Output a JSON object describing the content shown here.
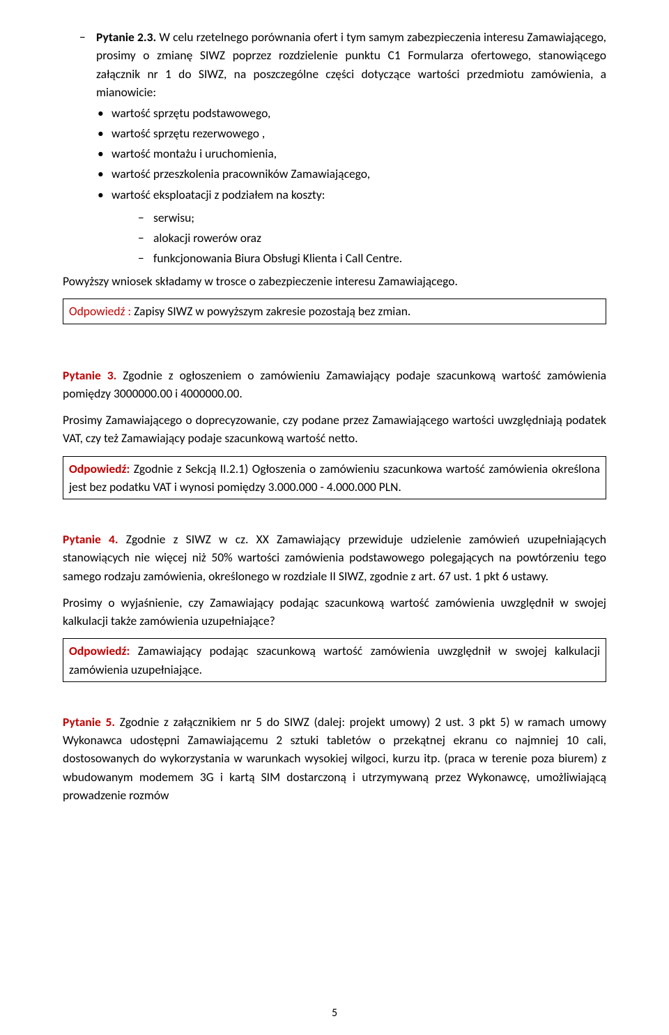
{
  "q23": {
    "heading_dash_label": "Pytanie 2.3.",
    "heading_rest": " W celu rzetelnego porównania ofert i tym samym zabezpieczenia interesu Zamawiającego, prosimy o zmianę SIWZ poprzez rozdzielenie punktu C1 Formularza ofertowego, stanowiącego załącznik nr 1 do SIWZ, na poszczególne części dotyczące wartości przedmiotu zamówienia, a mianowicie:",
    "bullets": [
      " wartość sprzętu podstawowego,",
      "wartość sprzętu rezerwowego ,",
      "wartość montażu i uruchomienia,",
      "wartość przeszkolenia pracowników Zamawiającego,",
      "wartość eksploatacji z podziałem na koszty:"
    ],
    "sub_dashes": [
      "serwisu;",
      "alokacji rowerów oraz",
      "funkcjonowania Biura Obsługi Klienta  i  Call Centre."
    ],
    "closing": "Powyższy wniosek składamy w trosce o zabezpieczenie interesu Zamawiającego.",
    "answer_label": "Odpowiedź : ",
    "answer_text": "Zapisy SIWZ w powyższym zakresie pozostają bez zmian."
  },
  "q3": {
    "label": "Pytanie 3.",
    "text1": " Zgodnie z ogłoszeniem o zamówieniu Zamawiający podaje szacunkową wartość zamówienia pomiędzy 3000000.00  i  4000000.00.",
    "text2": "Prosimy Zamawiającego o doprecyzowanie, czy podane przez Zamawiającego wartości uwzględniają podatek VAT, czy też Zamawiający podaje szacunkową wartość netto.",
    "answer_label": "Odpowiedź:",
    "answer_text1": " Zgodnie z Sekcją II.2.1)   Ogłoszenia o zamówieniu szacunkowa wartość ",
    "answer_text2": "zamówienia  określona jest bez podatku VAT i wynosi pomiędzy 3.000.000  -  4.000.000 PLN."
  },
  "q4": {
    "label": "Pytanie 4.",
    "text1": " Zgodnie z SIWZ w cz. XX Zamawiający przewiduje udzielenie zamówień uzupełniających stanowiących nie więcej niż 50% wartości zamówienia podstawowego polegających na powtórzeniu tego samego rodzaju zamówienia, określonego w rozdziale II SIWZ, zgodnie z art. 67 ust. 1 pkt 6 ustawy.",
    "text2": "Prosimy o wyjaśnienie, czy Zamawiający podając szacunkową wartość zamówienia uwzględnił w swojej kalkulacji także zamówienia uzupełniające?",
    "answer_label": "Odpowiedź:",
    "answer_text": " Zamawiający podając szacunkową wartość zamówienia uwzględnił w swojej kalkulacji zamówienia uzupełniające."
  },
  "q5": {
    "label": "Pytanie 5.",
    "text": " Zgodnie z załącznikiem nr 5 do SIWZ (dalej: projekt umowy) 2 ust. 3 pkt 5) w ramach umowy Wykonawca udostępni Zamawiającemu 2 sztuki tabletów o przekątnej ekranu co najmniej 10 cali, dostosowanych do wykorzystania w warunkach wysokiej wilgoci, kurzu itp. (praca w terenie poza biurem) z wbudowanym modemem 3G i kartą SIM dostarczoną i utrzymywaną przez Wykonawcę, umożliwiającą prowadzenie rozmów"
  },
  "page_number": "5",
  "colors": {
    "text": "#000000",
    "accent": "#c00000",
    "background": "#ffffff",
    "border": "#000000"
  }
}
